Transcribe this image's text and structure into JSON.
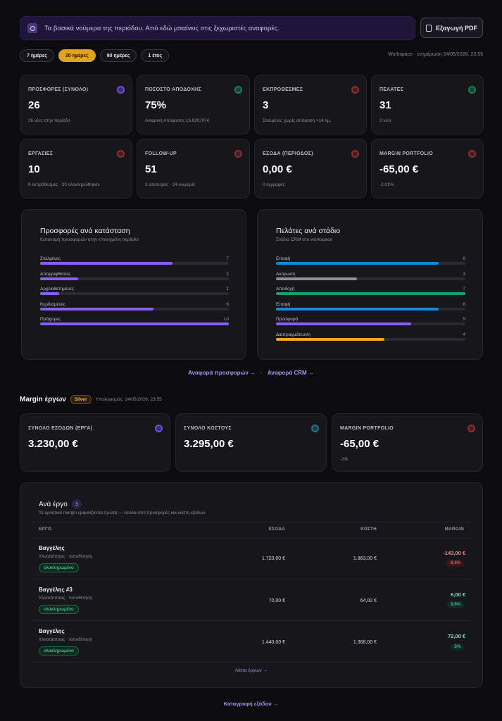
{
  "banner": {
    "text": "Τα βασικά νούμερα της περιόδου. Από εδώ μπαίνεις στις ξεχωριστές αναφορές.",
    "icon": "clock-icon"
  },
  "export_button": {
    "label": "Εξαγωγή PDF",
    "icon": "document-icon"
  },
  "period_pills": [
    {
      "label": "7 ημέρες",
      "active": false
    },
    {
      "label": "30 ημέρες",
      "active": true
    },
    {
      "label": "90 ημέρες",
      "active": false
    },
    {
      "label": "1 έτος",
      "active": false
    }
  ],
  "updated_text": "Workspace · ενημέρωση 24/05/2026, 23:55",
  "stats": [
    {
      "label": "ΠΡΟΣΦΟΡΕΣ (ΣΥΝΟΛΟ)",
      "value": "26",
      "sub": "26 νέες στην περίοδο",
      "color": "purple"
    },
    {
      "label": "ΠΟΣΟΣΤΟ ΑΠΟΔΟΧΗΣ",
      "value": "75%",
      "sub": "Αναμονή Απόφασης 16.620,00 €",
      "color": "green"
    },
    {
      "label": "ΕΚΠΡΟΘΕΣΜΕΣ",
      "value": "3",
      "sub": "Σταλμένες χωρίς απόφαση >14 ημ.",
      "color": "red"
    },
    {
      "label": "ΠΕΛΑΤΕΣ",
      "value": "31",
      "sub": "2 νέοι",
      "color": "green"
    },
    {
      "label": "ΕΡΓΑΣΙΕΣ",
      "value": "10",
      "sub": "6 εκπρόθεσμες · 20 ολοκληρώθηκαν",
      "color": "red"
    },
    {
      "label": "FOLLOW-UP",
      "value": "51",
      "sub": "3 αποτυχίες · 24 εκκρεμεί",
      "color": "red"
    },
    {
      "label": "ΕΣΟΔΑ (ΠΕΡΙΟΔΟΣ)",
      "value": "0,00 €",
      "sub": "0 εγγραφές",
      "color": "red"
    },
    {
      "label": "MARGIN PORTFOLIO",
      "value": "-65,00 €",
      "sub": "-2.01%",
      "color": "red"
    }
  ],
  "offers_panel": {
    "title": "Προσφορές ανά κατάσταση",
    "subtitle": "Κατανομή προσφορών στην επιλεγμένη περίοδο",
    "max": 10,
    "rows": [
      {
        "label": "Σταλμένες",
        "count": 7,
        "color": "#8b5cf6"
      },
      {
        "label": "Απορριφθείσες",
        "count": 2,
        "color": "#8b5cf6"
      },
      {
        "label": "Αρχειοθετημένες",
        "count": 1,
        "color": "#8b5cf6"
      },
      {
        "label": "Κερδισμένες",
        "count": 6,
        "color": "#8b5cf6"
      },
      {
        "label": "Πρόχειρες",
        "count": 10,
        "color": "#8b5cf6"
      }
    ]
  },
  "clients_panel": {
    "title": "Πελάτες ανά στάδιο",
    "subtitle": "Στάδια CRM στο workspace",
    "max": 7,
    "rows": [
      {
        "label": "Επαφή",
        "count": 6,
        "color": "#0e8ed1"
      },
      {
        "label": "Ακύρωση",
        "count": 3,
        "color": "#8e8e96"
      },
      {
        "label": "Αποδοχή",
        "count": 7,
        "color": "#10a36b"
      },
      {
        "label": "Επαφή",
        "count": 6,
        "color": "#0e8ed1"
      },
      {
        "label": "Προσφορά",
        "count": 5,
        "color": "#8b5cf6"
      },
      {
        "label": "Διαπραγμάτευση",
        "count": 4,
        "color": "#f0a81e"
      }
    ]
  },
  "links": {
    "offers": "Αναφορά προσφορών →",
    "sep": "·",
    "crm": "Αναφορά CRM →"
  },
  "margin_section": {
    "title": "Margin έργων",
    "badge": "Silver",
    "calc": "Υπολογισμός: 24/05/2026, 23:55"
  },
  "margin_stats": [
    {
      "label": "ΣΥΝΟΛΟ ΕΣΟΔΩΝ (ΕΡΓΑ)",
      "value": "3.230,00 €",
      "sub": "",
      "color": "purple"
    },
    {
      "label": "ΣΥΝΟΛΟ ΚΟΣΤΟΥΣ",
      "value": "3.295,00 €",
      "sub": "",
      "color": "blue"
    },
    {
      "label": "MARGIN PORTFOLIO",
      "value": "-65,00 €",
      "sub": "-2%",
      "color": "red"
    }
  ],
  "projects": {
    "title": "Ανά έργο",
    "count": "3",
    "description": "Τα αρνητικά margin εμφανίζονται πρώτα — έσοδα από προσφορές και κόστη εξόδων.",
    "headers": {
      "project": "ΕΡΓΟ",
      "revenue": "ΕΣΟΔΑ",
      "cost": "ΚΟΣΤΗ",
      "margin": "MARGIN"
    },
    "rows": [
      {
        "name": "Βαγγέλης",
        "desc": "Χλοοτάπητας · τοποθέτηση",
        "status": "ολοκληρωμένο",
        "revenue": "1.720,00 €",
        "cost": "1.863,00 €",
        "margin": "-143,00 €",
        "pct": "-8,3%",
        "sign": "neg"
      },
      {
        "name": "Βαγγέλης #3",
        "desc": "Χλοοτάπητας · τοποθέτηση",
        "status": "ολοκληρωμένο",
        "revenue": "70,00 €",
        "cost": "64,00 €",
        "margin": "6,00 €",
        "pct": "8,6%",
        "sign": "pos"
      },
      {
        "name": "Βαγγέλης",
        "desc": "Χλοοτάπητας · τοποθέτηση",
        "status": "ολοκληρωμένο",
        "revenue": "1.440,00 €",
        "cost": "1.368,00 €",
        "margin": "72,00 €",
        "pct": "5%",
        "sign": "pos"
      }
    ],
    "footer_link": "Λίστα έργων →"
  },
  "bottom_link": "Καταγραφή εξόδου →"
}
